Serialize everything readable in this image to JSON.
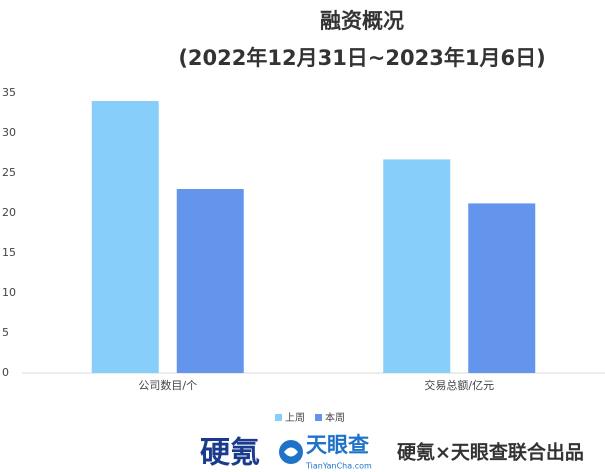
{
  "chart_data": {
    "type": "bar",
    "title": "融资概况",
    "subtitle": "(2022年12月31日~2023年1月6日)",
    "categories": [
      "公司数目/个",
      "交易总额/亿元"
    ],
    "series": [
      {
        "name": "上周",
        "color": "#87cefa",
        "values": [
          34,
          26.7
        ]
      },
      {
        "name": "本周",
        "color": "#6495ed",
        "values": [
          23,
          21.2
        ]
      }
    ],
    "ylim": [
      0,
      35
    ],
    "yticks": [
      0,
      5,
      10,
      15,
      20,
      25,
      30,
      35
    ],
    "grid": false,
    "legend": "bottom"
  },
  "footer": {
    "brand1": "硬氪",
    "brand2": "天眼查",
    "brand2_url": "TianYanCha.com",
    "credit": "硬氪×天眼查联合出品"
  }
}
